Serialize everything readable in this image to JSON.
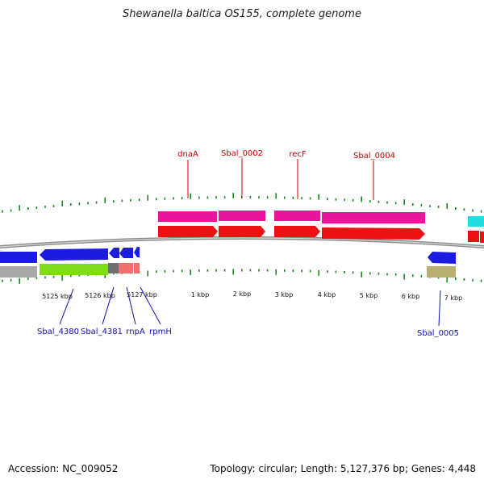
{
  "title": "Shewanella baltica OS155, complete genome",
  "footer": {
    "accession": "Accession: NC_009052",
    "summary": "Topology: circular; Length: 5,127,376 bp; Genes: 4,448"
  },
  "colors": {
    "forward_gene": "#e8159a",
    "forward_cds": "#ee1111",
    "reverse_cds": "#1c1ce0",
    "reverse_gene": "#a8a8a8",
    "rna": "#7fdc1a",
    "rnpa_gene": "#707070",
    "rnpa_cds": "#f07070",
    "sbal0005_gene": "#b8b070",
    "next_gene": "#22dde0",
    "backbone": "#8c8c8c",
    "tick": "#1d8a1d",
    "top_label": "#cc0000",
    "bottom_label": "#1010bb"
  },
  "scale_labels": [
    "5125 kbp",
    "5126 kbp",
    "5127 kbp",
    "1 kbp",
    "2 kbp",
    "3 kbp",
    "4 kbp",
    "5 kbp",
    "6 kbp",
    "7 kbp"
  ],
  "top_genes": [
    "dnaA",
    "Sbal_0002",
    "recF",
    "Sbal_0004"
  ],
  "bottom_genes": [
    "Sbal_4380",
    "Sbal_4381",
    "rnpA",
    "rpmH",
    "Sbal_0005"
  ]
}
